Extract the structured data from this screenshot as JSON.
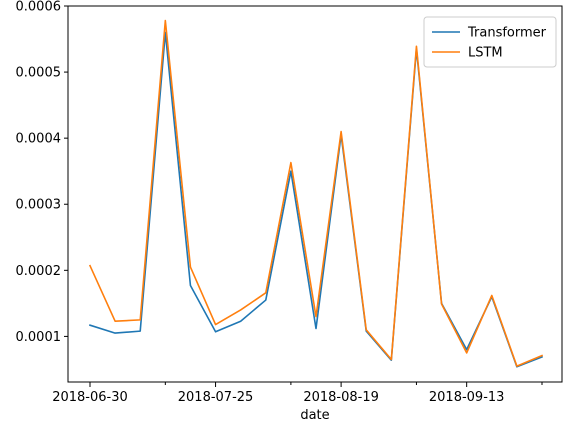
{
  "chart_data": {
    "type": "line",
    "xlabel": "date",
    "ylabel": "",
    "title": "",
    "x": [
      "2018-06-30",
      "2018-07-05",
      "2018-07-10",
      "2018-07-15",
      "2018-07-20",
      "2018-07-25",
      "2018-07-30",
      "2018-08-04",
      "2018-08-09",
      "2018-08-14",
      "2018-08-19",
      "2018-08-24",
      "2018-08-29",
      "2018-09-03",
      "2018-09-08",
      "2018-09-13",
      "2018-09-18",
      "2018-09-23",
      "2018-09-28"
    ],
    "x_ticks": [
      "2018-06-30",
      "2018-07-25",
      "2018-08-19",
      "2018-09-13"
    ],
    "x_tick_labels": [
      "2018-06-30",
      "2018-07-25",
      "2018-08-19",
      "2018-09-13"
    ],
    "x_minor_ticks": [
      "2018-07-15",
      "2018-08-09",
      "2018-09-03",
      "2018-09-28"
    ],
    "ylim": [
      3.1e-05,
      0.0006
    ],
    "y_ticks": [
      0.0001,
      0.0002,
      0.0003,
      0.0004,
      0.0005,
      0.0006
    ],
    "y_tick_labels": [
      "0.0001",
      "0.0002",
      "0.0003",
      "0.0004",
      "0.0005",
      "0.0006"
    ],
    "grid": false,
    "legend_position": "top-right",
    "series": [
      {
        "name": "Transformer",
        "color": "#1f77b4",
        "values": [
          0.000117,
          0.000105,
          0.000108,
          0.00056,
          0.000177,
          0.000107,
          0.000123,
          0.000155,
          0.00035,
          0.000112,
          0.000405,
          0.000108,
          6.4e-05,
          0.000535,
          0.00015,
          8e-05,
          0.00016,
          5.4e-05,
          6.9e-05
        ]
      },
      {
        "name": "LSTM",
        "color": "#ff7f0e",
        "values": [
          0.000207,
          0.000123,
          0.000125,
          0.000578,
          0.000205,
          0.000118,
          0.00014,
          0.000166,
          0.000363,
          0.00013,
          0.00041,
          0.00011,
          6.5e-05,
          0.000539,
          0.000149,
          7.5e-05,
          0.000162,
          5.5e-05,
          7.1e-05
        ]
      }
    ]
  }
}
